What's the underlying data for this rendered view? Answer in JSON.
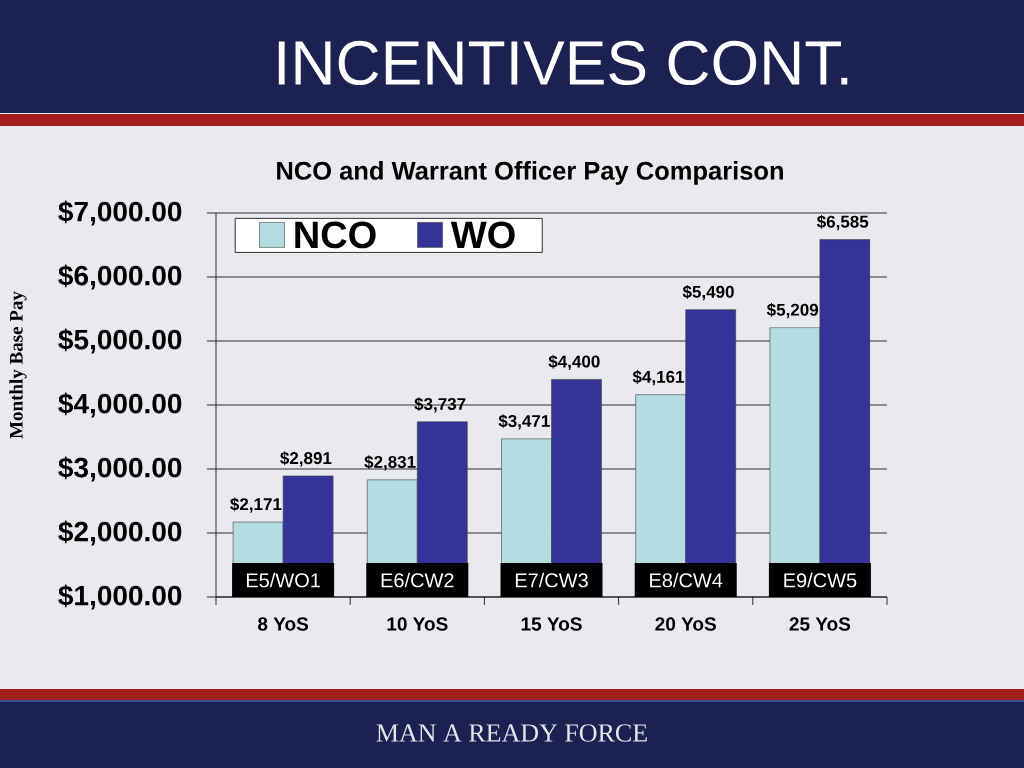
{
  "chart_data": {
    "type": "bar",
    "title": "INCENTIVES CONT.",
    "subtitle": "NCO and Warrant Officer Pay Comparison",
    "ylabel": "Monthly Base Pay",
    "categories": [
      "8 YoS",
      "10 YoS",
      "15 YoS",
      "20 YoS",
      "25 YoS"
    ],
    "series": [
      {
        "name": "NCO",
        "color": "#b4dde1",
        "values": [
          2171,
          2831,
          3471,
          4161,
          5209
        ],
        "value_labels": [
          "$2,171",
          "$2,831",
          "$3,471",
          "$4,161",
          "$5,209"
        ]
      },
      {
        "name": "WO",
        "color": "#333399",
        "values": [
          2891,
          3737,
          4400,
          5490,
          6585
        ],
        "value_labels": [
          "$2,891",
          "$3,737",
          "$4,400",
          "$5,490",
          "$6,585"
        ]
      }
    ],
    "ylim": [
      1000,
      7000
    ],
    "yticks": [
      {
        "value": 1000,
        "label": "$1,000.00"
      },
      {
        "value": 2000,
        "label": "$2,000.00"
      },
      {
        "value": 3000,
        "label": "$3,000.00"
      },
      {
        "value": 4000,
        "label": "$4,000.00"
      },
      {
        "value": 5000,
        "label": "$5,000.00"
      },
      {
        "value": 6000,
        "label": "$6,000.00"
      },
      {
        "value": 7000,
        "label": "$7,000.00"
      }
    ],
    "grid": "y",
    "legend": "top left",
    "annotations": [
      {
        "text": "E5/WO1",
        "x": "8 YoS",
        "y": 1265
      },
      {
        "text": "E6/CW2",
        "x": "10 YoS",
        "y": 1265
      },
      {
        "text": "E7/CW3",
        "x": "15 YoS",
        "y": 1265
      },
      {
        "text": "E8/CW4",
        "x": "20 YoS",
        "y": 1265
      },
      {
        "text": "E9/CW5",
        "x": "25 YoS",
        "y": 1265
      },
      "MAN A READY FORCE"
    ]
  }
}
